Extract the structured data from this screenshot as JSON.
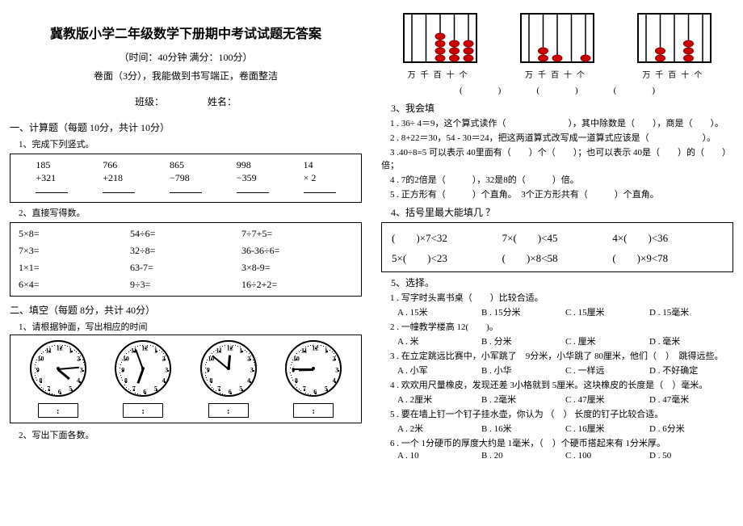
{
  "title": "冀教版小学二年级数学下册期中考试试题无答案",
  "subtitle1": "（时间：40分钟 满分：100分）",
  "subtitle2": "卷面（3分），我能做到书写端正，卷面整洁",
  "name_line": "班级：　　　　　姓名：",
  "sec1": "一、计算题（每题 10分，共计 10分）",
  "sec1_1": "1、完成下列竖式。",
  "vert": [
    {
      "a": "185",
      "op": "+",
      "b": "321"
    },
    {
      "a": "766",
      "op": "+",
      "b": "218"
    },
    {
      "a": "865",
      "op": "−",
      "b": "798"
    },
    {
      "a": "998",
      "op": "−",
      "b": "359"
    },
    {
      "a": "14",
      "op": "×",
      "b": "2"
    }
  ],
  "sec1_2": "2、直接写得数。",
  "mental": [
    "5×8=",
    "54÷6=",
    "7÷7+5=",
    "7×3=",
    "32÷8=",
    "36-36÷6=",
    "1×1=",
    "63-7=",
    "3×8-9=",
    "6×4=",
    "9÷3=",
    "16÷2+2="
  ],
  "sec2": "二、填空（每题 8分，共计 40分）",
  "sec2_1": "1、请根据钟面，写出相应的时间",
  "clocks": [
    {
      "hour_deg": 130,
      "min_deg": 85
    },
    {
      "hour_deg": 200,
      "min_deg": 340
    },
    {
      "hour_deg": 5,
      "min_deg": 310
    },
    {
      "hour_deg": 269,
      "min_deg": 270
    }
  ],
  "time_sep": ":",
  "sec2_2": "2、写出下面各数。",
  "abacus_labels": "万千百十个",
  "abacus": [
    {
      "beads": [
        0,
        0,
        4,
        3,
        3
      ]
    },
    {
      "beads": [
        0,
        2,
        1,
        0,
        1
      ]
    },
    {
      "beads": [
        0,
        2,
        0,
        3,
        0
      ]
    }
  ],
  "paren_row": "(　　　　)　　　　(　　　　)　　　　(　　　　)",
  "sec2_3": "3、我会填",
  "fill": [
    "1 . 36÷ 4＝9，这个算式读作（　　　　　　　），其中除数是（　　），商是（　　）。",
    "2 . 8+22＝30，54 - 30＝24，把这两道算式改写成一道算式应该是（　　　　　　）。",
    "3 .40÷8=5  可以表示 40里面有（　　）个（　　）；也可以表示 40是（　　）的（　　）倍；",
    "4 . 7的2倍是（　　　），32是8的（　　　）倍。",
    "5 . 正方形有（　　　）个直角。　3个正方形共有（　　　）个直角。"
  ],
  "sec2_4": "4、括号里最大能填几 ？",
  "brackets": [
    "(　　)×7<32",
    "7×(　　)<45",
    "4×(　　)<36",
    "5×(　　)<23",
    "(　　)×8<58",
    "(　　)×9<78"
  ],
  "sec2_5": "5、选择。",
  "choice": [
    {
      "q": "1 . 写字时头离书桌（　　）比较合适。",
      "opts": [
        "A . 15米",
        "B . 15分米",
        "C . 15厘米",
        "D . 15毫米"
      ]
    },
    {
      "q": "2 . 一幢教学楼高 12(　　)。",
      "opts": [
        "A . 米",
        "B . 分米",
        "C . 厘米",
        "D . 毫米"
      ]
    },
    {
      "q": "3 . 在立定跳远比赛中，小军跳了　9分米，小华跳了 80厘米，他们（　）　跳得远些。",
      "opts": [
        "A . 小军",
        "B . 小华",
        "C . 一样远",
        "D . 不好确定"
      ]
    },
    {
      "q": "4 . 欢欢用尺量橡皮，发现还差 3小格就到 5厘米。这块橡皮的长度是（　）毫米。",
      "opts": [
        "A . 2厘米",
        "B . 2毫米",
        "C . 47厘米",
        "D . 47毫米"
      ]
    },
    {
      "q": "5 . 要在墙上钉一个钉子挂水壶，你认为 （　） 长度的钉子比较合适。",
      "opts": [
        "A . 2米",
        "B . 16米",
        "C . 16厘米",
        "D . 6分米"
      ]
    },
    {
      "q": "6 . 一个 1分硬币的厚度大约是 1毫米，（　）个硬币搭起来有 1分米厚。",
      "opts": [
        "A . 10",
        "B . 20",
        "C . 100",
        "D . 50"
      ]
    }
  ]
}
